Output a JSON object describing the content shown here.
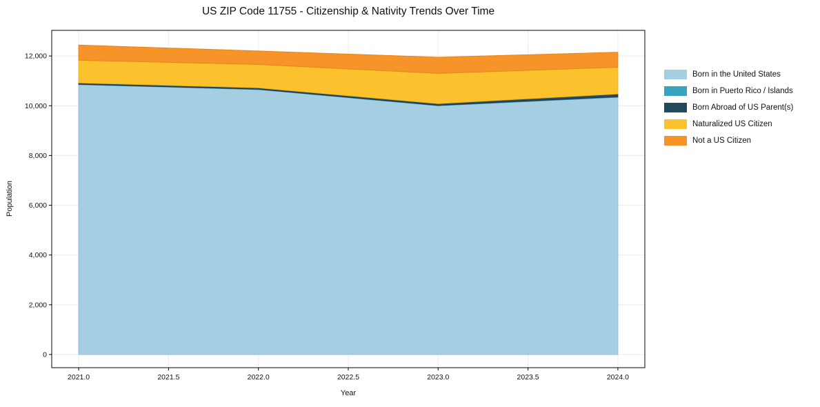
{
  "chart_data": {
    "type": "area",
    "stacked": true,
    "title": "US ZIP Code 11755 - Citizenship & Nativity Trends Over Time",
    "xlabel": "Year",
    "ylabel": "Population",
    "x": [
      2021,
      2022,
      2023,
      2024
    ],
    "series": [
      {
        "name": "Born in the United States",
        "color": "#a6cee3",
        "edge": "#8fbfd9",
        "values": [
          10850,
          10650,
          10000,
          10340
        ]
      },
      {
        "name": "Born in Puerto Rico / Islands",
        "color": "#3aa3c0",
        "edge": "#2f93b0",
        "values": [
          15,
          15,
          15,
          25
        ]
      },
      {
        "name": "Born Abroad of US Parent(s)",
        "color": "#25495c",
        "edge": "#1d3c4d",
        "values": [
          55,
          55,
          70,
          110
        ]
      },
      {
        "name": "Naturalized US Citizen",
        "color": "#fcc22d",
        "edge": "#eeb11e",
        "values": [
          910,
          940,
          1215,
          1075
        ]
      },
      {
        "name": "Not a US Citizen",
        "color": "#f79429",
        "edge": "#e9841c",
        "values": [
          610,
          540,
          650,
          600
        ]
      }
    ],
    "totals": [
      12440,
      12200,
      11950,
      12150
    ],
    "xlim": [
      2020.85,
      2024.15
    ],
    "ylim": [
      -530,
      13030
    ],
    "xticks": {
      "values": [
        2021.0,
        2021.5,
        2022.0,
        2022.5,
        2023.0,
        2023.5,
        2024.0
      ],
      "labels": [
        "2021.0",
        "2021.5",
        "2022.0",
        "2022.5",
        "2023.0",
        "2023.5",
        "2024.0"
      ]
    },
    "yticks": {
      "values": [
        0,
        2000,
        4000,
        6000,
        8000,
        10000,
        12000
      ],
      "labels": [
        "0",
        "2,000",
        "4,000",
        "6,000",
        "8,000",
        "10,000",
        "12,000"
      ]
    },
    "grid": true,
    "legend_position": "right-outside",
    "style": {
      "background": "#ffffff",
      "grid_color": "#ececec",
      "spine_color": "#000000",
      "text_color": "#111111"
    }
  }
}
